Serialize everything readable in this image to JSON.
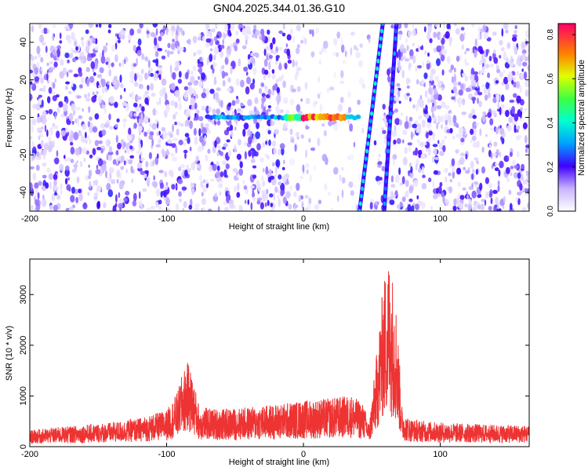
{
  "title": "GN04.2025.344.01.36.G10",
  "chart_data": [
    {
      "type": "heatmap",
      "xlabel": "Height of straight line (km)",
      "ylabel": "Frequency (Hz)",
      "xlim": [
        -200,
        165
      ],
      "ylim": [
        -50,
        50
      ],
      "x_ticks": [
        -200,
        -100,
        0,
        100
      ],
      "x_tick_labels": [
        "-200",
        "-100",
        "0",
        "100"
      ],
      "y_ticks": [
        -40,
        -20,
        0,
        20,
        40
      ],
      "y_tick_labels": [
        "-40",
        "-20",
        "0",
        "20",
        "40"
      ],
      "colorbar": {
        "label": "Normalized spectral amplitude",
        "range": [
          0.0,
          0.85
        ],
        "ticks": [
          0.0,
          0.2,
          0.4,
          0.6,
          0.8
        ],
        "tick_labels": [
          "0.0",
          "0.2",
          "0.4",
          "0.6",
          "0.8"
        ]
      },
      "features": [
        {
          "kind": "horizontal-line",
          "freq": 0,
          "x_start": -70,
          "x_end": 40,
          "peak_amplitude": 0.8,
          "peak_x": [
            0,
            30
          ]
        },
        {
          "kind": "diagonal-line",
          "x_at_freq_min": 41,
          "x_at_freq_max": 58,
          "amplitude": 0.3
        },
        {
          "kind": "diagonal-line",
          "x_at_freq_min": 59,
          "x_at_freq_max": 68,
          "amplitude": 0.2
        }
      ]
    },
    {
      "type": "line",
      "xlabel": "Height of straight line (km)",
      "ylabel": "SNR (10 * v/v)",
      "xlim": [
        -200,
        165
      ],
      "ylim": [
        0,
        3700
      ],
      "x_ticks": [
        -200,
        -100,
        0,
        100
      ],
      "x_tick_labels": [
        "-200",
        "-100",
        "0",
        "100"
      ],
      "y_ticks": [
        0,
        1000,
        2000,
        3000
      ],
      "y_tick_labels": [
        "0",
        "1000",
        "2000",
        "3000"
      ],
      "series_color": "#ee3333",
      "series": [
        {
          "x": [
            -200,
            -180,
            -160,
            -140,
            -120,
            -100,
            -92,
            -88,
            -84,
            -80,
            -76,
            -60,
            -40,
            -20,
            0,
            20,
            35,
            44,
            48,
            52,
            55,
            58,
            60,
            62,
            64,
            66,
            68,
            70,
            72,
            75,
            80,
            90,
            100,
            120,
            140,
            165
          ],
          "y": [
            270,
            320,
            360,
            400,
            470,
            600,
            900,
            1250,
            1400,
            1050,
            650,
            620,
            650,
            700,
            760,
            800,
            850,
            700,
            380,
            1200,
            1900,
            2600,
            2900,
            3100,
            3000,
            2700,
            2300,
            1500,
            650,
            500,
            450,
            420,
            400,
            380,
            360,
            350
          ]
        }
      ]
    }
  ]
}
